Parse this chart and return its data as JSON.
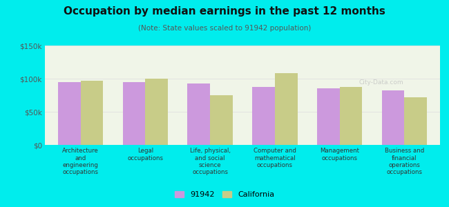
{
  "title": "Occupation by median earnings in the past 12 months",
  "subtitle": "(Note: State values scaled to 91942 population)",
  "background_color": "#00EDED",
  "plot_bg_color": "#f0f5e8",
  "bar_color_local": "#cc99dd",
  "bar_color_state": "#c8cc88",
  "categories": [
    "Architecture\nand\nengineering\noccupations",
    "Legal\noccupations",
    "Life, physical,\nand social\nscience\noccupations",
    "Computer and\nmathematical\noccupations",
    "Management\noccupations",
    "Business and\nfinancial\noperations\noccupations"
  ],
  "values_local": [
    95000,
    95000,
    93000,
    88000,
    85000,
    82000
  ],
  "values_state": [
    97000,
    100000,
    75000,
    108000,
    87000,
    72000
  ],
  "ylim": [
    0,
    150000
  ],
  "yticks": [
    0,
    50000,
    100000,
    150000
  ],
  "ytick_labels": [
    "$0",
    "$50k",
    "$100k",
    "$150k"
  ],
  "legend_labels": [
    "91942",
    "California"
  ],
  "bar_width": 0.35,
  "grid_color": "#dddddd"
}
